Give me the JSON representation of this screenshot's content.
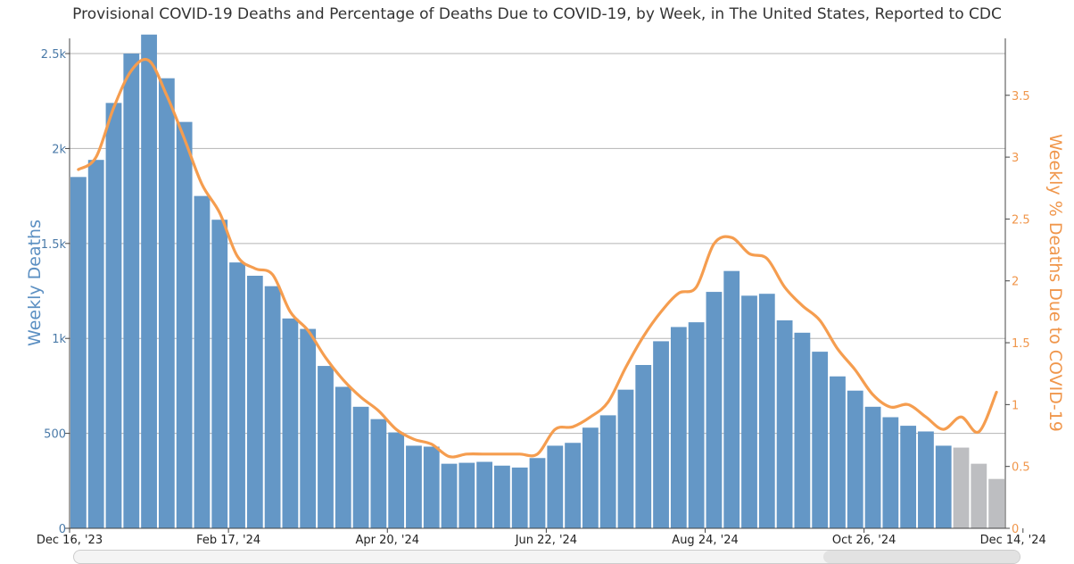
{
  "chart_data": {
    "type": "bar",
    "title": "Provisional COVID-19 Deaths and Percentage of Deaths Due to COVID-19, by Week, in The United States, Reported to CDC",
    "xlabel": "",
    "ylabel": "Weekly Deaths",
    "y2label": "Weekly % Deaths Due to COVID-19",
    "ylim": [
      0,
      2580
    ],
    "y2lim": [
      0,
      3.96
    ],
    "grid": true,
    "yticks": [
      "0",
      "500",
      "1k",
      "1.5k",
      "2k",
      "2.5k"
    ],
    "ytick_values": [
      0,
      500,
      1000,
      1500,
      2000,
      2500
    ],
    "y2ticks": [
      "0",
      "0.5",
      "1",
      "1.5",
      "2",
      "2.5",
      "3",
      "3.5"
    ],
    "y2tick_values": [
      0,
      0.5,
      1,
      1.5,
      2,
      2.5,
      3,
      3.5
    ],
    "x_tick_labels": [
      "Dec 16, '23",
      "Feb 17, '24",
      "Apr 20, '24",
      "Jun 22, '24",
      "Aug 24, '24",
      "Oct 26, '24",
      "Dec 14, '24"
    ],
    "x_tick_weeks": [
      0,
      9,
      18,
      27,
      36,
      45,
      54
    ],
    "colors": {
      "bar": "#6497c6",
      "bar_incomplete": "#bdbec1",
      "line": "#f59d4f"
    },
    "series": [
      {
        "type": "bar",
        "axis": "left",
        "values": [
          1850,
          1940,
          2240,
          2500,
          2600,
          2370,
          2140,
          1750,
          1625,
          1400,
          1330,
          1275,
          1105,
          1050,
          855,
          745,
          640,
          575,
          505,
          435,
          430,
          340,
          345,
          350,
          330,
          320,
          370,
          435,
          450,
          530,
          595,
          730,
          860,
          985,
          1060,
          1085,
          1245,
          1355,
          1225,
          1235,
          1095,
          1030,
          930,
          800,
          725,
          640,
          585,
          540,
          510,
          435,
          425,
          340,
          260
        ],
        "incomplete_from_index": 50
      },
      {
        "type": "line",
        "axis": "right",
        "values": [
          2.9,
          3.0,
          3.4,
          3.7,
          3.78,
          3.5,
          3.15,
          2.78,
          2.55,
          2.2,
          2.1,
          2.05,
          1.75,
          1.6,
          1.38,
          1.2,
          1.06,
          0.95,
          0.8,
          0.72,
          0.68,
          0.58,
          0.6,
          0.6,
          0.6,
          0.6,
          0.6,
          0.8,
          0.82,
          0.9,
          1.02,
          1.3,
          1.55,
          1.75,
          1.9,
          1.95,
          2.3,
          2.35,
          2.22,
          2.18,
          1.95,
          1.8,
          1.68,
          1.45,
          1.28,
          1.08,
          0.98,
          1.0,
          0.9,
          0.8,
          0.9,
          0.78,
          1.1
        ]
      }
    ]
  }
}
